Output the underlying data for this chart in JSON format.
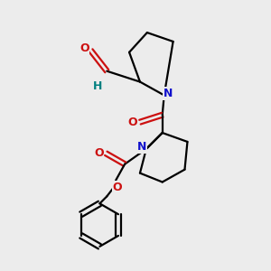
{
  "bg_color": "#ececec",
  "atom_colors": {
    "C": "#000000",
    "N": "#1010cc",
    "O": "#cc1010",
    "H": "#008080"
  },
  "bond_color": "#000000",
  "bond_width": 1.6,
  "figure_size": [
    3.0,
    3.0
  ],
  "dpi": 100
}
